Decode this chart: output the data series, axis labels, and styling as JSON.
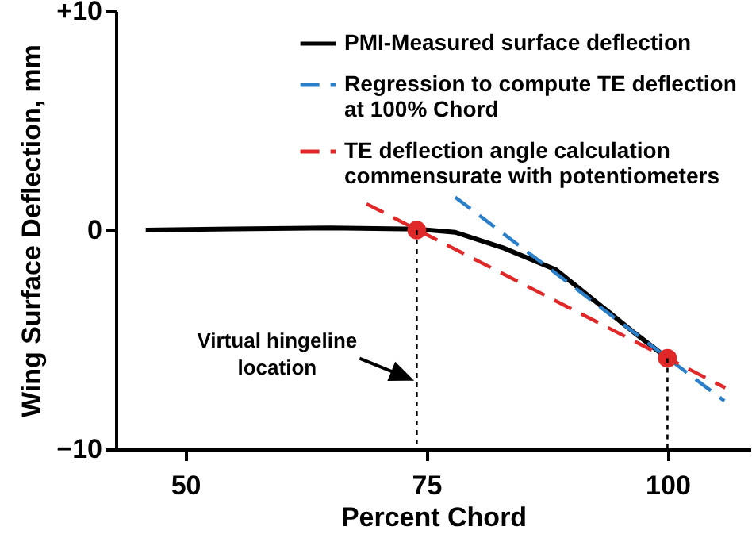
{
  "chart_data": {
    "type": "line",
    "xlabel": "Percent Chord",
    "ylabel": "Wing Surface Deflection, mm",
    "xlim": [
      42.8,
      108.6
    ],
    "xticks": [
      50,
      75,
      100
    ],
    "ylim": [
      -10,
      10
    ],
    "yticks": [
      {
        "value": 10,
        "label": "+10"
      },
      0,
      -10
    ],
    "legend": "top right",
    "annotations": [
      {
        "text": "Virtual hingeline location",
        "x": 74,
        "y": -6.8
      }
    ],
    "series": [
      {
        "name": "PMI-Measured surface deflection",
        "type": "line",
        "color": "#000000",
        "line_style": "solid",
        "x": [
          45.9,
          55,
          65,
          74,
          78,
          82.9,
          88.4,
          93.8,
          96.6,
          100
        ],
        "values": [
          0,
          0.05,
          0.1,
          0.05,
          -0.1,
          -0.8,
          -1.8,
          -3.7,
          -4.7,
          -5.85
        ]
      },
      {
        "name": "Regression to compute TE deflection at 100% Chord",
        "type": "line",
        "color": "#2a7fc8",
        "line_style": "dashed",
        "x": [
          78.0,
          105.9
        ],
        "values": [
          1.5,
          -7.8
        ]
      },
      {
        "name": "TE deflection angle calculation commensurate with potentiometers",
        "type": "line",
        "color": "#e02828",
        "line_style": "dashed",
        "x": [
          68.8,
          106.0
        ],
        "values": [
          1.2,
          -7.2
        ]
      },
      {
        "type": "scatter",
        "color": "#e02828",
        "marker": "circle",
        "x": [
          74,
          100
        ],
        "values": [
          0,
          -5.85
        ]
      },
      {
        "type": "line",
        "color": "#000000",
        "line_style": "dotted",
        "x": [
          74,
          74
        ],
        "values": [
          0,
          -10
        ]
      },
      {
        "type": "line",
        "color": "#000000",
        "line_style": "dotted",
        "x": [
          100,
          100
        ],
        "values": [
          -5.85,
          -10
        ]
      }
    ]
  }
}
